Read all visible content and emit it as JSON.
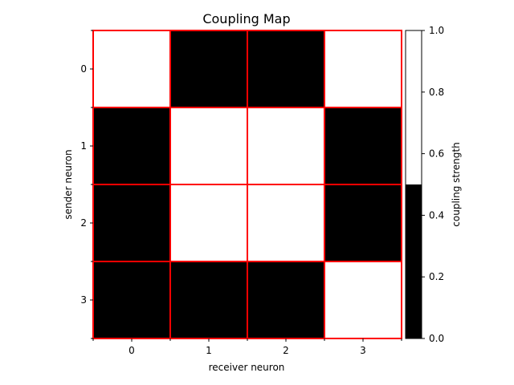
{
  "chart_data": {
    "type": "heatmap",
    "title": "Coupling Map",
    "xlabel": "receiver neuron",
    "ylabel": "sender neuron",
    "x_categories": [
      "0",
      "1",
      "2",
      "3"
    ],
    "y_categories": [
      "0",
      "1",
      "2",
      "3"
    ],
    "values": [
      [
        1,
        0,
        0,
        1
      ],
      [
        0,
        1,
        1,
        0
      ],
      [
        0,
        1,
        1,
        0
      ],
      [
        0,
        0,
        0,
        1
      ]
    ],
    "cell_border_color": "#ff0000",
    "colormap": {
      "type": "binary",
      "low_color": "#000000",
      "high_color": "#ffffff",
      "threshold": 0.5
    },
    "colorbar": {
      "label": "coupling strength",
      "range": [
        0.0,
        1.0
      ],
      "ticks": [
        "0.0",
        "0.2",
        "0.4",
        "0.6",
        "0.8",
        "1.0"
      ]
    }
  }
}
